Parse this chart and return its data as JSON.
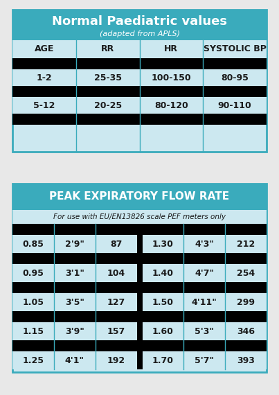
{
  "bg_color": "#e8e8e8",
  "teal_dark": "#3aabbc",
  "teal_light": "#cce8f0",
  "black": "#000000",
  "white": "#ffffff",
  "text_dark": "#1a1a1a",
  "table1_title": "Normal Paediatric values",
  "table1_subtitle": "(adapted from APLS)",
  "table1_headers": [
    "AGE",
    "RR",
    "HR",
    "SYSTOLIC BP"
  ],
  "table1_rows": [
    [
      "1-2",
      "25-35",
      "100-150",
      "80-95"
    ],
    [
      "5-12",
      "20-25",
      "80-120",
      "90-110"
    ]
  ],
  "table2_title": "PEAK EXPIRATORY FLOW RATE",
  "table2_subtitle": "For use with EU/EN13826 scale PEF meters only",
  "table2_left": [
    [
      "0.85",
      "2'9\"",
      "87"
    ],
    [
      "0.95",
      "3'1\"",
      "104"
    ],
    [
      "1.05",
      "3'5\"",
      "127"
    ],
    [
      "1.15",
      "3'9\"",
      "157"
    ],
    [
      "1.25",
      "4'1\"",
      "192"
    ]
  ],
  "table2_right": [
    [
      "1.30",
      "4'3\"",
      "212"
    ],
    [
      "1.40",
      "4'7\"",
      "254"
    ],
    [
      "1.50",
      "4'11\"",
      "299"
    ],
    [
      "1.60",
      "5'3\"",
      "346"
    ],
    [
      "1.70",
      "5'7\"",
      "393"
    ]
  ]
}
